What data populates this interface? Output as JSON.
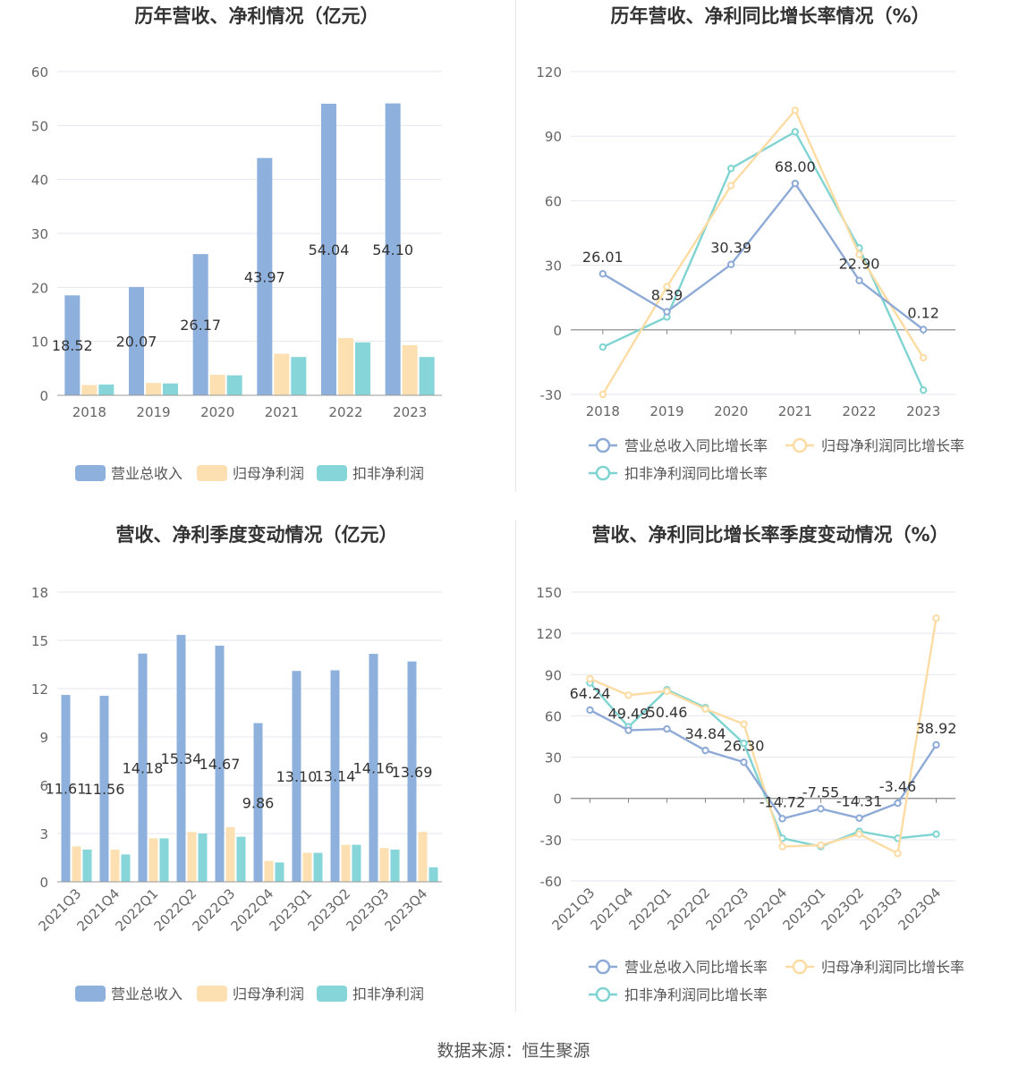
{
  "footer": "数据来源：恒生聚源",
  "colors": {
    "revenue": "#8eb0dc",
    "net_profit": "#fde0b1",
    "deducted_profit": "#86d6d9",
    "growth_revenue": "#8eaad6",
    "growth_net": "#fddca4",
    "growth_deducted": "#7fd4d2"
  },
  "chart_data": [
    {
      "type": "bar",
      "title": "历年营收、净利情况（亿元）",
      "categories": [
        "2018",
        "2019",
        "2020",
        "2021",
        "2022",
        "2023"
      ],
      "ylim": [
        0,
        60
      ],
      "yticks": [
        0,
        10,
        20,
        30,
        40,
        50,
        60
      ],
      "series": [
        {
          "name": "营业总收入",
          "values": [
            18.52,
            20.07,
            26.17,
            43.97,
            54.04,
            54.1
          ],
          "labels": [
            "18.52",
            "20.07",
            "26.17",
            "43.97",
            "54.04",
            "54.10"
          ]
        },
        {
          "name": "归母净利润",
          "values": [
            1.9,
            2.3,
            3.8,
            7.7,
            10.6,
            9.3
          ]
        },
        {
          "name": "扣非净利润",
          "values": [
            2.0,
            2.2,
            3.7,
            7.1,
            9.8,
            7.1
          ]
        }
      ],
      "legend": "bottom"
    },
    {
      "type": "line",
      "title": "历年营收、净利同比增长率情况（%）",
      "categories": [
        "2018",
        "2019",
        "2020",
        "2021",
        "2022",
        "2023"
      ],
      "ylim": [
        -30,
        120
      ],
      "yticks": [
        -30,
        0,
        30,
        60,
        90,
        120
      ],
      "series": [
        {
          "name": "营业总收入同比增长率",
          "values": [
            26.01,
            8.39,
            30.39,
            68.0,
            22.9,
            0.12
          ],
          "labels": [
            "26.01",
            "8.39",
            "30.39",
            "68.00",
            "22.90",
            "0.12"
          ]
        },
        {
          "name": "归母净利润同比增长率",
          "values": [
            -30,
            20,
            67,
            102,
            35,
            -13
          ]
        },
        {
          "name": "扣非净利润同比增长率",
          "values": [
            -8,
            6,
            75,
            92,
            38,
            -28
          ]
        }
      ],
      "legend": "bottom"
    },
    {
      "type": "bar",
      "title": "营收、净利季度变动情况（亿元）",
      "categories": [
        "2021Q3",
        "2021Q4",
        "2022Q1",
        "2022Q2",
        "2022Q3",
        "2022Q4",
        "2023Q1",
        "2023Q2",
        "2023Q3",
        "2023Q4"
      ],
      "ylim": [
        0,
        18
      ],
      "yticks": [
        0,
        3,
        6,
        9,
        12,
        15,
        18
      ],
      "series": [
        {
          "name": "营业总收入",
          "values": [
            11.61,
            11.56,
            14.18,
            15.34,
            14.67,
            9.86,
            13.1,
            13.14,
            14.16,
            13.69
          ],
          "labels": [
            "11.61",
            "11.56",
            "14.18",
            "15.34",
            "14.67",
            "9.86",
            "13.10",
            "13.14",
            "14.16",
            "13.69"
          ]
        },
        {
          "name": "归母净利润",
          "values": [
            2.2,
            2.0,
            2.7,
            3.1,
            3.4,
            1.3,
            1.8,
            2.3,
            2.1,
            3.1
          ]
        },
        {
          "name": "扣非净利润",
          "values": [
            2.0,
            1.7,
            2.7,
            3.0,
            2.8,
            1.2,
            1.8,
            2.3,
            2.0,
            0.9
          ]
        }
      ],
      "legend": "bottom"
    },
    {
      "type": "line",
      "title": "营收、净利同比增长率季度变动情况（%）",
      "categories": [
        "2021Q3",
        "2021Q4",
        "2022Q1",
        "2022Q2",
        "2022Q3",
        "2022Q4",
        "2023Q1",
        "2023Q2",
        "2023Q3",
        "2023Q4"
      ],
      "ylim": [
        -60,
        150
      ],
      "yticks": [
        -60,
        -30,
        0,
        30,
        60,
        90,
        120,
        150
      ],
      "series": [
        {
          "name": "营业总收入同比增长率",
          "values": [
            64.24,
            49.49,
            50.46,
            34.84,
            26.3,
            -14.72,
            -7.55,
            -14.31,
            -3.46,
            38.92
          ],
          "labels": [
            "64.24",
            "49.49",
            "50.46",
            "34.84",
            "26.30",
            "-14.72",
            "-7.55",
            "-14.31",
            "-3.46",
            "38.92"
          ]
        },
        {
          "name": "归母净利润同比增长率",
          "values": [
            87,
            75,
            78,
            65,
            54,
            -35,
            -34,
            -26,
            -40,
            131
          ]
        },
        {
          "name": "扣非净利润同比增长率",
          "values": [
            84,
            52,
            79,
            66,
            40,
            -29,
            -35,
            -24,
            -29,
            -26
          ]
        }
      ],
      "legend": "bottom"
    }
  ]
}
